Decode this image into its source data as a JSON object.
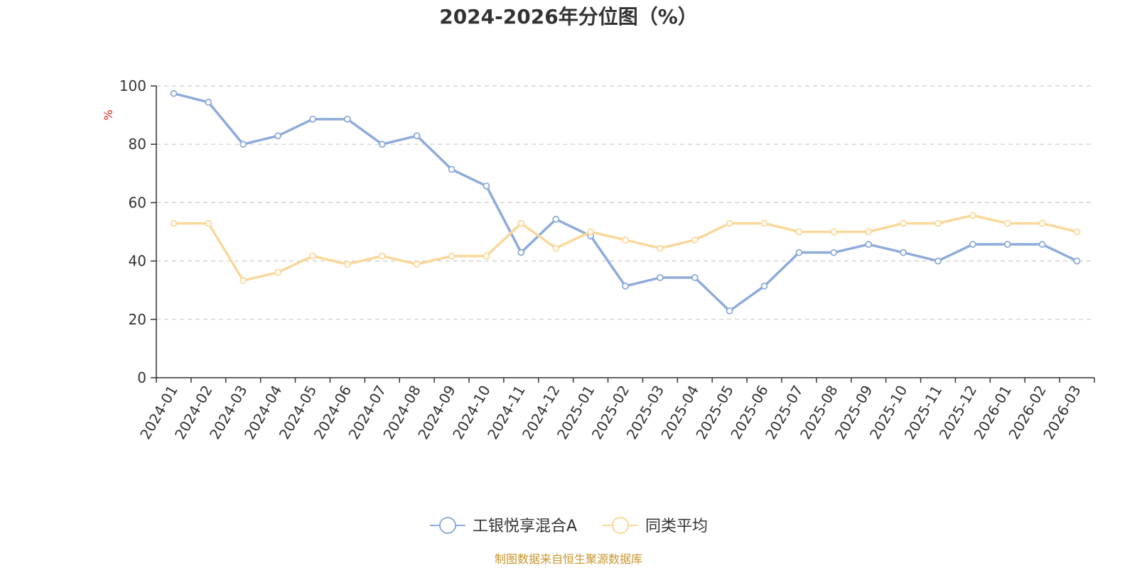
{
  "chart_data": {
    "type": "line",
    "title": "2024-2026年分位图（%）",
    "ylabel": "%",
    "xlabel": "",
    "ylim": [
      0,
      100
    ],
    "yticks": [
      0,
      20,
      40,
      60,
      80,
      100
    ],
    "grid": true,
    "legend_position": "bottom",
    "categories": [
      "2024-01",
      "2024-02",
      "2024-03",
      "2024-04",
      "2024-05",
      "2024-06",
      "2024-07",
      "2024-08",
      "2024-09",
      "2024-10",
      "2024-11",
      "2024-12",
      "2025-01",
      "2025-02",
      "2025-03",
      "2025-04",
      "2025-05",
      "2025-06",
      "2025-07",
      "2025-08",
      "2025-09",
      "2025-10",
      "2025-11",
      "2025-12",
      "2026-01",
      "2026-02",
      "2026-03"
    ],
    "series": [
      {
        "name": "工银悦享混合A",
        "color": "#8eabd9",
        "values": [
          97.4,
          94.4,
          80.0,
          82.9,
          88.6,
          88.6,
          80.0,
          82.9,
          71.4,
          65.7,
          42.9,
          54.3,
          48.6,
          31.4,
          34.3,
          34.3,
          22.9,
          31.4,
          42.9,
          42.9,
          45.7,
          42.9,
          40.0,
          45.7,
          45.7,
          45.7,
          40.0
        ]
      },
      {
        "name": "同类平均",
        "color": "#f9d89a",
        "values": [
          52.9,
          52.9,
          33.3,
          36.1,
          41.7,
          38.9,
          41.7,
          38.9,
          41.7,
          41.7,
          52.9,
          44.4,
          50.0,
          47.2,
          44.4,
          47.2,
          52.9,
          52.9,
          50.0,
          50.0,
          50.0,
          52.9,
          52.9,
          55.6,
          52.9,
          52.9,
          50.0
        ]
      }
    ]
  },
  "footer": {
    "source": "制图数据来自恒生聚源数据库",
    "source_color": "#c8962e"
  },
  "colors": {
    "unit_label": "#e02020",
    "grid": "#cccccc",
    "axis": "#333333"
  }
}
